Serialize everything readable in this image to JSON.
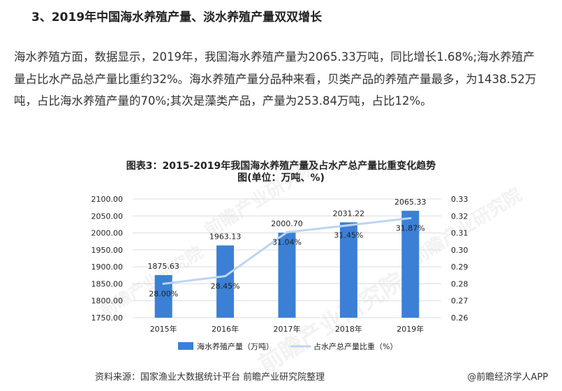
{
  "article": {
    "heading": "3、2019年中国海水养殖产量、淡水养殖产量双双增长",
    "paragraph": "海水养殖方面，数据显示，2019年，我国海水养殖产量为2065.33万吨，同比增长1.68%;海水养殖产量占比水产品总产量比重约32%。海水养殖产量分品种来看，贝类产品的养殖产量最多，为1438.52万吨，占比海水养殖产量的70%;其次是藻类产品，产量为253.84万吨，占比12%。"
  },
  "chart_data": {
    "type": "bar+line",
    "title_line1": "图表3：2015-2019年我国海水养殖产量及占水产总产量比重变化趋势",
    "title_line2": "图(单位：万吨、%)",
    "categories": [
      "2015年",
      "2016年",
      "2017年",
      "2018年",
      "2019年"
    ],
    "series": [
      {
        "name": "海水养殖产量（万吨）",
        "type": "bar",
        "axis": "left",
        "values": [
          1875.63,
          1963.13,
          2000.7,
          2031.22,
          2065.33
        ],
        "labels": [
          "1875.63",
          "1963.13",
          "2000.70",
          "2031.22",
          "2065.33"
        ]
      },
      {
        "name": "占水产总产量比重（%）",
        "type": "line",
        "axis": "right",
        "values": [
          0.28,
          0.2845,
          0.3104,
          0.3145,
          0.3187
        ],
        "labels": [
          "28.00%",
          "28.45%",
          "31.04%",
          "31.45%",
          "31.87%"
        ]
      }
    ],
    "y_left": {
      "min": 1750,
      "max": 2100,
      "ticks": [
        "1750.00",
        "1800.00",
        "1850.00",
        "1900.00",
        "1950.00",
        "2000.00",
        "2050.00",
        "2100.00"
      ]
    },
    "y_right": {
      "min": 0.26,
      "max": 0.33,
      "ticks": [
        "0.26",
        "0.27",
        "0.28",
        "0.29",
        "0.30",
        "0.31",
        "0.32",
        "0.33"
      ]
    },
    "grid": true,
    "legend": "bottom",
    "colors": {
      "bar": "#3b80d6",
      "line": "#bcd5ef",
      "grid": "#dcdcdc",
      "text": "#222222"
    }
  },
  "footer": {
    "source": "资料来源：国家渔业大数据统计平台 前瞻产业研究院整理",
    "brand": "@前瞻经济学人APP"
  },
  "watermark": {
    "text": "前瞻产业研究院"
  }
}
